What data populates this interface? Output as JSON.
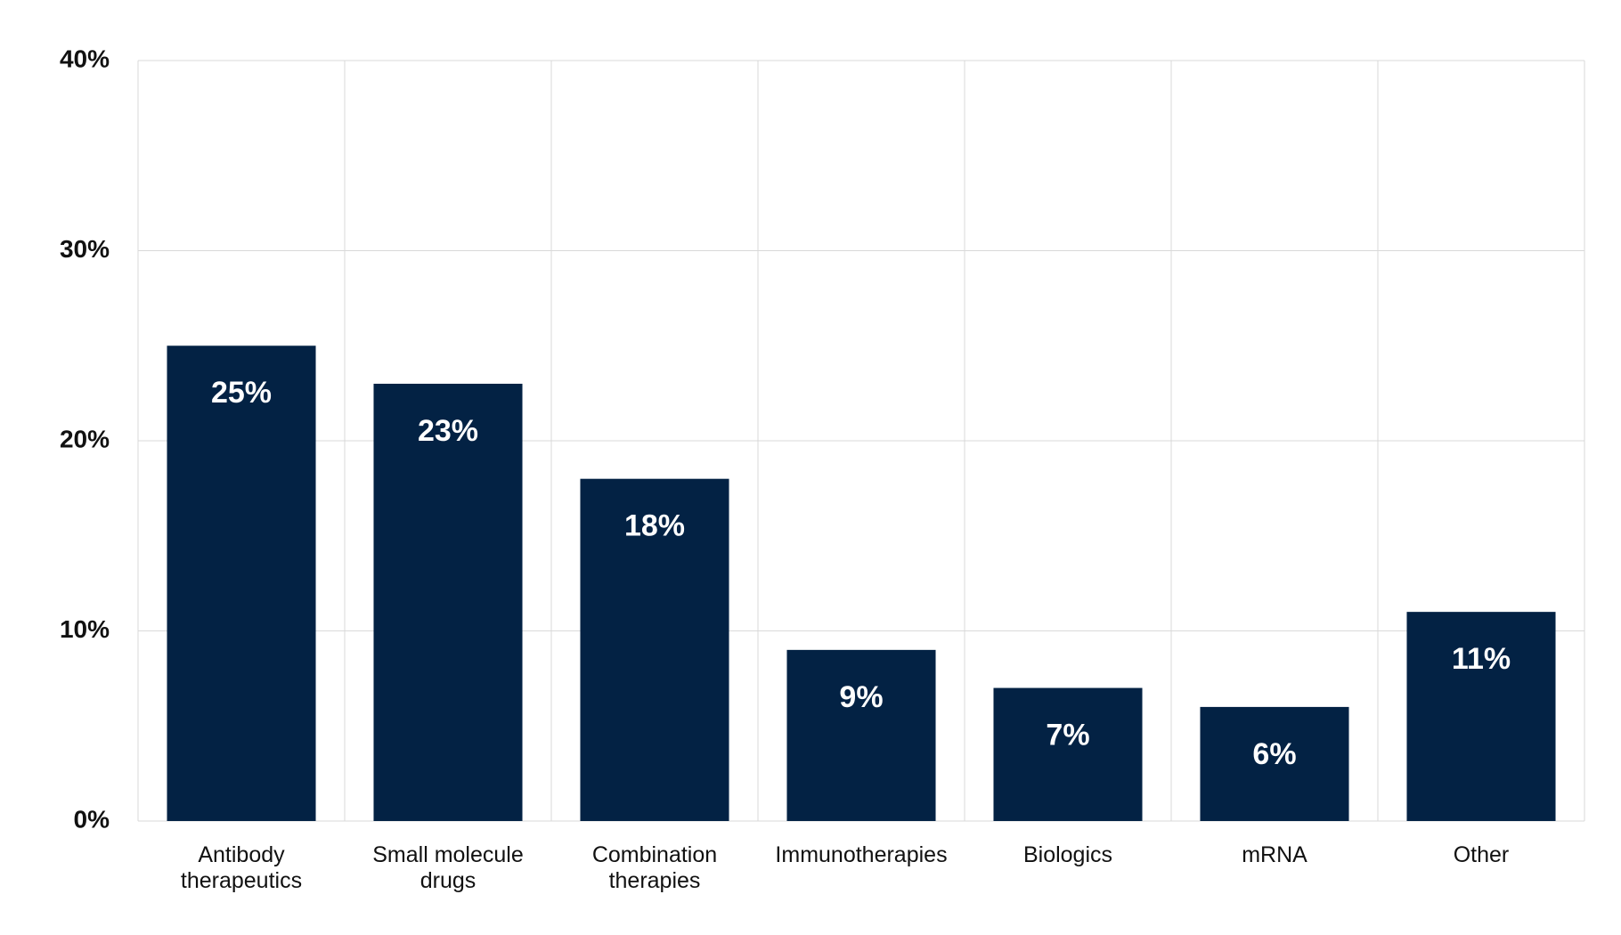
{
  "chart_data": {
    "type": "bar",
    "categories": [
      "Antibody therapeutics",
      "Small molecule drugs",
      "Combination therapies",
      "Immunotherapies",
      "Biologics",
      "mRNA",
      "Other"
    ],
    "values": [
      25,
      23,
      18,
      9,
      7,
      6,
      11
    ],
    "value_labels": [
      "25%",
      "23%",
      "18%",
      "9%",
      "7%",
      "6%",
      "11%"
    ],
    "color": "#032244",
    "ylim": [
      0,
      40
    ],
    "yticks": [
      {
        "value": 0,
        "label": "0%"
      },
      {
        "value": 10,
        "label": "10%"
      },
      {
        "value": 20,
        "label": "20%"
      },
      {
        "value": 30,
        "label": "30%"
      },
      {
        "value": 40,
        "label": "40%"
      }
    ],
    "grid": true
  }
}
